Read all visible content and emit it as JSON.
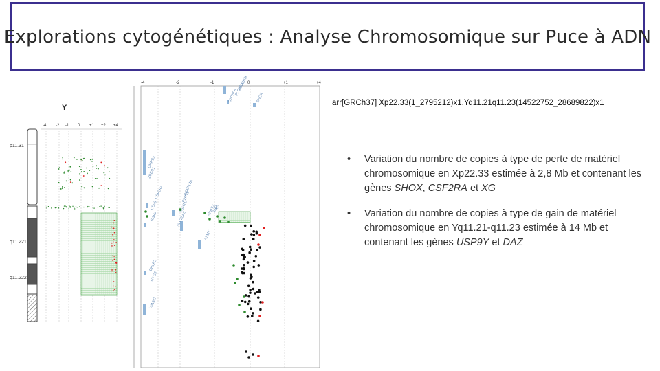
{
  "title": "Explorations cytogénétiques : Analyse Chromosomique sur Puce à ADN",
  "formula": "arr[GRCh37] Xp22.33(1_2795212)x1,Yq11.21q11.23(14522752_28689822)x1",
  "bullets": [
    {
      "pre": "Variation du nombre de copies à type de perte de matériel chromosomique en Xp22.33 estimée à 2,8 Mb et contenant les gènes ",
      "g1": "SHOX",
      "sep1": ", ",
      "g2": "CSF2RA",
      "sep2": " et ",
      "g3": "XG",
      "post": ""
    },
    {
      "pre": "Variation du nombre de copies à type de gain de matériel chromosomique en Yq11.21-q11.23 estimée à 14 Mb et contenant les gènes ",
      "g1": "USP9Y",
      "sep1": " et ",
      "g2": "DAZ",
      "post": ""
    }
  ],
  "left_panel": {
    "chromosome": "Y",
    "ticks": [
      "-4",
      "-2",
      "-1",
      "0",
      "+1",
      "+2",
      "+4"
    ],
    "bands": [
      "p11.31",
      "q11.221",
      "q11.222"
    ]
  },
  "right_panel": {
    "ticks": [
      "-4",
      "-2",
      "-1",
      "0",
      "+1",
      "+4"
    ],
    "gene_labels": [
      "DHRSX",
      "ZBED1",
      "CD99",
      "CSF2RA",
      "IL3RA",
      "SLC25A6",
      "ASMTL",
      "P2RY8",
      "AKAP17A",
      "ASMT",
      "GTPBP6",
      "PLCXD1",
      "PPP2R3B",
      "SHOX",
      "CRLF2",
      "VAMP7",
      "SPRY3",
      "IL9R",
      "XG",
      "GYG2"
    ]
  },
  "colors": {
    "title_border": "#3b2f8f",
    "loss_green": "#2e8b2e",
    "gain_red": "#e02020",
    "gene_blue": "#8fb4d8"
  }
}
